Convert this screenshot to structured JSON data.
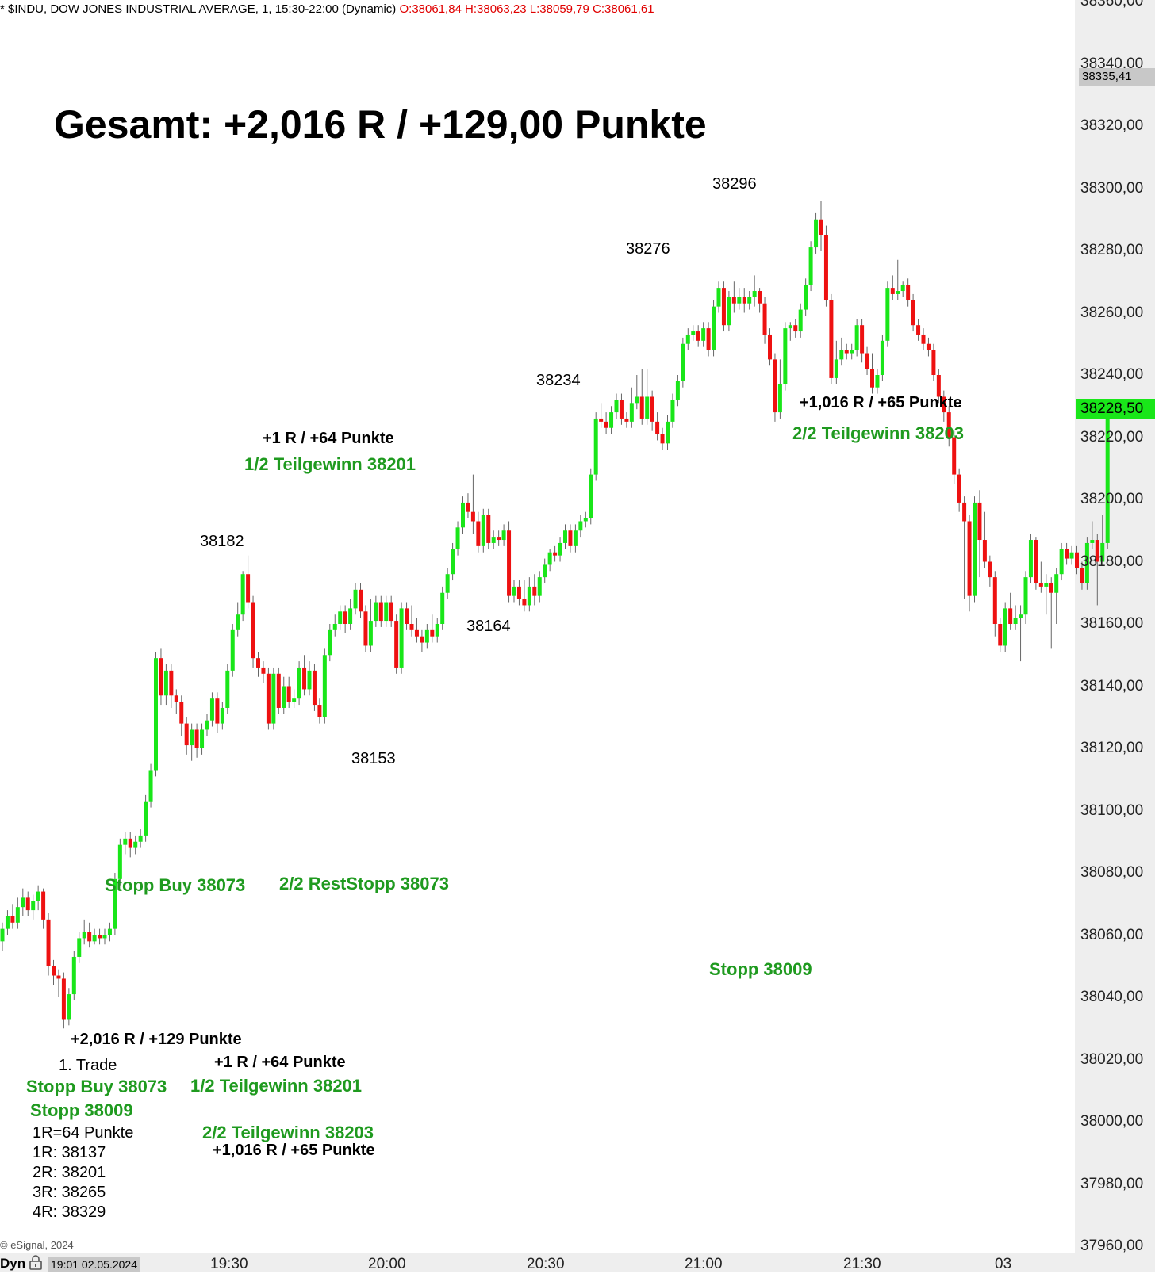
{
  "header": {
    "symbol": "* $INDU, DOW JONES INDUSTRIAL AVERAGE, 1, 15:30-22:00 (Dynamic)",
    "ohlc": "O:38061,84 H:38063,23 L:38059,79 C:38061,61"
  },
  "colors": {
    "up": "#19e619",
    "down": "#ee1111",
    "annotation_green": "#1f9a1f",
    "axis_bg": "#eeeeee",
    "last_price_bg": "#19e619"
  },
  "title": "Gesamt: +2,016 R / +129,00 Punkte",
  "copyright": "© eSignal, 2024",
  "bottom_bar": {
    "left_label": "Dyn",
    "lock_icon": "lock-icon",
    "date_box": "19:01 02.05.2024"
  },
  "price_axis": {
    "marker_value": "38335,41",
    "last_price": "38228,50",
    "ticks": [
      "38360,00",
      "38340,00",
      "38320,00",
      "38300,00",
      "38280,00",
      "38260,00",
      "38240,00",
      "38220,00",
      "38200,00",
      "38180,00",
      "38160,00",
      "38140,00",
      "38120,00",
      "38100,00",
      "38080,00",
      "38060,00",
      "38040,00",
      "38020,00",
      "38000,00",
      "37980,00",
      "37960,00"
    ]
  },
  "time_axis": {
    "ticks": [
      "19:30",
      "20:00",
      "20:30",
      "21:00",
      "21:30",
      "03"
    ]
  },
  "chart_data": {
    "type": "candlestick",
    "title": "* $INDU, DOW JONES INDUSTRIAL AVERAGE, 1, 15:30-22:00 (Dynamic)",
    "timeframe": "1 minute",
    "ylim": [
      37955,
      38365
    ],
    "yticks": [
      38360,
      38340,
      38320,
      38300,
      38280,
      38260,
      38240,
      38220,
      38200,
      38180,
      38160,
      38140,
      38120,
      38100,
      38080,
      38060,
      38040,
      38020,
      38000,
      37980,
      37960
    ],
    "xticks": [
      "19:30",
      "20:00",
      "20:30",
      "21:00",
      "21:30",
      "03"
    ],
    "x_start": "19:01",
    "last_price": 38228.5,
    "candles": [
      [
        38058,
        38062,
        38055,
        38064
      ],
      [
        38062,
        38066,
        38060,
        38068
      ],
      [
        38066,
        38064,
        38062,
        38070
      ],
      [
        38064,
        38069,
        38062,
        38072
      ],
      [
        38069,
        38072,
        38066,
        38075
      ],
      [
        38072,
        38068,
        38066,
        38074
      ],
      [
        38068,
        38071,
        38065,
        38073
      ],
      [
        38071,
        38074,
        38068,
        38076
      ],
      [
        38074,
        38065,
        38062,
        38075
      ],
      [
        38065,
        38050,
        38047,
        38067
      ],
      [
        38050,
        38047,
        38044,
        38052
      ],
      [
        38047,
        38046,
        38040,
        38049
      ],
      [
        38046,
        38033,
        38030,
        38048
      ],
      [
        38033,
        38041,
        38031,
        38043
      ],
      [
        38041,
        38053,
        38039,
        38055
      ],
      [
        38053,
        38059,
        38051,
        38061
      ],
      [
        38059,
        38061,
        38057,
        38065
      ],
      [
        38061,
        38058,
        38056,
        38064
      ],
      [
        38058,
        38060,
        38057,
        38062
      ],
      [
        38060,
        38059,
        38057,
        38062
      ],
      [
        38059,
        38060,
        38057,
        38062
      ],
      [
        38060,
        38062,
        38058,
        38064
      ],
      [
        38062,
        38078,
        38060,
        38080
      ],
      [
        38078,
        38089,
        38076,
        38091
      ],
      [
        38089,
        38091,
        38086,
        38093
      ],
      [
        38091,
        38088,
        38085,
        38093
      ],
      [
        38088,
        38090,
        38086,
        38092
      ],
      [
        38090,
        38092,
        38088,
        38094
      ],
      [
        38092,
        38103,
        38090,
        38105
      ],
      [
        38103,
        38113,
        38101,
        38115
      ],
      [
        38113,
        38149,
        38111,
        38151
      ],
      [
        38149,
        38137,
        38134,
        38152
      ],
      [
        38137,
        38145,
        38134,
        38147
      ],
      [
        38145,
        38137,
        38133,
        38147
      ],
      [
        38137,
        38135,
        38131,
        38139
      ],
      [
        38135,
        38128,
        38124,
        38137
      ],
      [
        38128,
        38121,
        38118,
        38130
      ],
      [
        38121,
        38126,
        38116,
        38128
      ],
      [
        38126,
        38120,
        38117,
        38128
      ],
      [
        38120,
        38126,
        38118,
        38128
      ],
      [
        38126,
        38129,
        38124,
        38131
      ],
      [
        38129,
        38136,
        38127,
        38138
      ],
      [
        38136,
        38128,
        38125,
        38138
      ],
      [
        38128,
        38133,
        38126,
        38135
      ],
      [
        38133,
        38145,
        38131,
        38147
      ],
      [
        38145,
        38158,
        38143,
        38160
      ],
      [
        38158,
        38163,
        38156,
        38167
      ],
      [
        38163,
        38176,
        38161,
        38177
      ],
      [
        38176,
        38167,
        38165,
        38182
      ],
      [
        38167,
        38149,
        38146,
        38169
      ],
      [
        38149,
        38146,
        38143,
        38151
      ],
      [
        38146,
        38144,
        38141,
        38148
      ],
      [
        38144,
        38128,
        38126,
        38146
      ],
      [
        38128,
        38144,
        38126,
        38146
      ],
      [
        38144,
        38133,
        38131,
        38146
      ],
      [
        38133,
        38140,
        38131,
        38143
      ],
      [
        38140,
        38135,
        38133,
        38143
      ],
      [
        38135,
        38136,
        38133,
        38139
      ],
      [
        38136,
        38146,
        38134,
        38148
      ],
      [
        38146,
        38139,
        38137,
        38150
      ],
      [
        38139,
        38145,
        38137,
        38148
      ],
      [
        38145,
        38134,
        38132,
        38147
      ],
      [
        38134,
        38130,
        38128,
        38136
      ],
      [
        38130,
        38150,
        38128,
        38152
      ],
      [
        38150,
        38158,
        38148,
        38160
      ],
      [
        38158,
        38160,
        38156,
        38163
      ],
      [
        38160,
        38164,
        38158,
        38166
      ],
      [
        38164,
        38160,
        38157,
        38166
      ],
      [
        38160,
        38165,
        38158,
        38168
      ],
      [
        38165,
        38171,
        38163,
        38173
      ],
      [
        38171,
        38164,
        38162,
        38173
      ],
      [
        38164,
        38153,
        38151,
        38166
      ],
      [
        38153,
        38161,
        38151,
        38168
      ],
      [
        38161,
        38167,
        38159,
        38169
      ],
      [
        38167,
        38161,
        38159,
        38169
      ],
      [
        38161,
        38167,
        38159,
        38169
      ],
      [
        38167,
        38161,
        38159,
        38169
      ],
      [
        38161,
        38146,
        38144,
        38163
      ],
      [
        38146,
        38165,
        38144,
        38167
      ],
      [
        38165,
        38160,
        38158,
        38167
      ],
      [
        38160,
        38158,
        38156,
        38166
      ],
      [
        38158,
        38156,
        38154,
        38162
      ],
      [
        38156,
        38154,
        38151,
        38158
      ],
      [
        38154,
        38158,
        38152,
        38160
      ],
      [
        38158,
        38156,
        38154,
        38163
      ],
      [
        38156,
        38160,
        38154,
        38162
      ],
      [
        38160,
        38170,
        38158,
        38172
      ],
      [
        38170,
        38176,
        38168,
        38178
      ],
      [
        38176,
        38184,
        38174,
        38186
      ],
      [
        38184,
        38191,
        38182,
        38193
      ],
      [
        38191,
        38199,
        38189,
        38201
      ],
      [
        38199,
        38196,
        38194,
        38202
      ],
      [
        38196,
        38193,
        38189,
        38208
      ],
      [
        38193,
        38185,
        38183,
        38196
      ],
      [
        38185,
        38195,
        38183,
        38197
      ],
      [
        38195,
        38186,
        38184,
        38197
      ],
      [
        38186,
        38188,
        38184,
        38190
      ],
      [
        38188,
        38187,
        38185,
        38190
      ],
      [
        38187,
        38190,
        38185,
        38192
      ],
      [
        38190,
        38169,
        38167,
        38193
      ],
      [
        38169,
        38172,
        38167,
        38174
      ],
      [
        38172,
        38168,
        38166,
        38174
      ],
      [
        38168,
        38166,
        38164,
        38174
      ],
      [
        38166,
        38172,
        38164,
        38175
      ],
      [
        38172,
        38169,
        38166,
        38176
      ],
      [
        38169,
        38175,
        38167,
        38177
      ],
      [
        38175,
        38179,
        38173,
        38181
      ],
      [
        38179,
        38183,
        38177,
        38184
      ],
      [
        38183,
        38182,
        38180,
        38185
      ],
      [
        38182,
        38186,
        38180,
        38188
      ],
      [
        38186,
        38190,
        38184,
        38192
      ],
      [
        38190,
        38185,
        38183,
        38192
      ],
      [
        38185,
        38190,
        38183,
        38192
      ],
      [
        38190,
        38193,
        38188,
        38195
      ],
      [
        38193,
        38194,
        38191,
        38196
      ],
      [
        38194,
        38208,
        38192,
        38210
      ],
      [
        38208,
        38226,
        38206,
        38228
      ],
      [
        38226,
        38225,
        38223,
        38231
      ],
      [
        38225,
        38223,
        38221,
        38228
      ],
      [
        38223,
        38228,
        38221,
        38230
      ],
      [
        38228,
        38232,
        38226,
        38234
      ],
      [
        38232,
        38226,
        38224,
        38234
      ],
      [
        38226,
        38225,
        38223,
        38228
      ],
      [
        38225,
        38231,
        38223,
        38236
      ],
      [
        38231,
        38233,
        38229,
        38240
      ],
      [
        38233,
        38226,
        38224,
        38242
      ],
      [
        38226,
        38233,
        38224,
        38242
      ],
      [
        38233,
        38225,
        38222,
        38235
      ],
      [
        38225,
        38221,
        38219,
        38228
      ],
      [
        38221,
        38218,
        38216,
        38223
      ],
      [
        38218,
        38225,
        38216,
        38227
      ],
      [
        38225,
        38232,
        38223,
        38234
      ],
      [
        38232,
        38238,
        38230,
        38240
      ],
      [
        38238,
        38250,
        38236,
        38252
      ],
      [
        38250,
        38253,
        38248,
        38255
      ],
      [
        38253,
        38254,
        38251,
        38256
      ],
      [
        38254,
        38251,
        38249,
        38256
      ],
      [
        38251,
        38255,
        38249,
        38257
      ],
      [
        38255,
        38248,
        38246,
        38257
      ],
      [
        38248,
        38262,
        38246,
        38264
      ],
      [
        38262,
        38268,
        38260,
        38270
      ],
      [
        38268,
        38256,
        38254,
        38270
      ],
      [
        38256,
        38265,
        38254,
        38267
      ],
      [
        38265,
        38263,
        38260,
        38270
      ],
      [
        38263,
        38265,
        38261,
        38268
      ],
      [
        38265,
        38263,
        38260,
        38268
      ],
      [
        38263,
        38265,
        38261,
        38267
      ],
      [
        38265,
        38267,
        38262,
        38272
      ],
      [
        38267,
        38263,
        38260,
        38268
      ],
      [
        38263,
        38253,
        38250,
        38265
      ],
      [
        38253,
        38245,
        38243,
        38255
      ],
      [
        38245,
        38228,
        38225,
        38247
      ],
      [
        38228,
        38237,
        38226,
        38245
      ],
      [
        38237,
        38255,
        38235,
        38257
      ],
      [
        38255,
        38256,
        38251,
        38257
      ],
      [
        38256,
        38254,
        38252,
        38258
      ],
      [
        38254,
        38261,
        38252,
        38263
      ],
      [
        38261,
        38269,
        38259,
        38271
      ],
      [
        38269,
        38281,
        38267,
        38283
      ],
      [
        38281,
        38290,
        38279,
        38292
      ],
      [
        38290,
        38285,
        38280,
        38296
      ],
      [
        38285,
        38264,
        38262,
        38288
      ],
      [
        38264,
        38239,
        38237,
        38266
      ],
      [
        38239,
        38245,
        38237,
        38251
      ],
      [
        38245,
        38248,
        38243,
        38252
      ],
      [
        38248,
        38247,
        38245,
        38250
      ],
      [
        38247,
        38248,
        38245,
        38250
      ],
      [
        38248,
        38256,
        38246,
        38258
      ],
      [
        38256,
        38247,
        38244,
        38258
      ],
      [
        38247,
        38242,
        38240,
        38249
      ],
      [
        38242,
        38236,
        38234,
        38247
      ],
      [
        38236,
        38240,
        38234,
        38242
      ],
      [
        38240,
        38251,
        38238,
        38253
      ],
      [
        38251,
        38268,
        38249,
        38270
      ],
      [
        38268,
        38266,
        38264,
        38272
      ],
      [
        38266,
        38267,
        38264,
        38277
      ],
      [
        38267,
        38269,
        38265,
        38270
      ],
      [
        38269,
        38264,
        38262,
        38271
      ],
      [
        38264,
        38256,
        38254,
        38266
      ],
      [
        38256,
        38253,
        38251,
        38258
      ],
      [
        38253,
        38250,
        38248,
        38255
      ],
      [
        38250,
        38248,
        38246,
        38252
      ],
      [
        38248,
        38240,
        38238,
        38250
      ],
      [
        38240,
        38233,
        38231,
        38242
      ],
      [
        38233,
        38228,
        38225,
        38235
      ],
      [
        38228,
        38220,
        38217,
        38230
      ],
      [
        38220,
        38208,
        38205,
        38222
      ],
      [
        38208,
        38199,
        38196,
        38210
      ],
      [
        38199,
        38193,
        38168,
        38201
      ],
      [
        38193,
        38169,
        38164,
        38195
      ],
      [
        38169,
        38199,
        38167,
        38201
      ],
      [
        38199,
        38187,
        38175,
        38203
      ],
      [
        38187,
        38180,
        38178,
        38196
      ],
      [
        38180,
        38175,
        38172,
        38182
      ],
      [
        38175,
        38160,
        38156,
        38177
      ],
      [
        38160,
        38153,
        38151,
        38162
      ],
      [
        38153,
        38165,
        38151,
        38167
      ],
      [
        38165,
        38160,
        38158,
        38170
      ],
      [
        38160,
        38162,
        38158,
        38166
      ],
      [
        38162,
        38163,
        38148,
        38166
      ],
      [
        38163,
        38175,
        38160,
        38177
      ],
      [
        38175,
        38187,
        38173,
        38189
      ],
      [
        38187,
        38173,
        38171,
        38188
      ],
      [
        38173,
        38172,
        38170,
        38180
      ],
      [
        38172,
        38173,
        38163,
        38176
      ],
      [
        38173,
        38170,
        38152,
        38175
      ],
      [
        38170,
        38176,
        38160,
        38178
      ],
      [
        38176,
        38184,
        38174,
        38186
      ],
      [
        38184,
        38181,
        38179,
        38186
      ],
      [
        38181,
        38183,
        38179,
        38185
      ],
      [
        38183,
        38178,
        38176,
        38185
      ],
      [
        38178,
        38173,
        38171,
        38180
      ],
      [
        38173,
        38186,
        38171,
        38188
      ],
      [
        38186,
        38187,
        38184,
        38193
      ],
      [
        38187,
        38180,
        38166,
        38189
      ],
      [
        38180,
        38186,
        38184,
        38195
      ],
      [
        38186,
        38229,
        38184,
        38231
      ]
    ],
    "annotations": {
      "price_labels": [
        "38182",
        "38153",
        "38234",
        "38164",
        "38276",
        "38296"
      ],
      "trade_labels": [
        "+1 R / +64 Punkte",
        "1/2 Teilgewinn 38201",
        "+1,016 R / +65 Punkte",
        "2/2 Teilgewinn 38203",
        "Stopp Buy 38073",
        "2/2 RestStopp 38073",
        "Stopp 38009"
      ]
    },
    "trade_summary": {
      "result": "+2,016 R / +129 Punkte",
      "trade": "1. Trade",
      "entry": "Stopp Buy 38073",
      "stop": "Stopp 38009",
      "r_value": "1R=64 Punkte",
      "levels": [
        "1R: 38137",
        "2R: 38201",
        "3R: 38265",
        "4R: 38329"
      ],
      "partial1_result": "+1 R / +64 Punkte",
      "partial1": "1/2 Teilgewinn 38201",
      "partial2": "2/2 Teilgewinn 38203",
      "partial2_result": "+1,016 R / +65 Punkte"
    }
  }
}
